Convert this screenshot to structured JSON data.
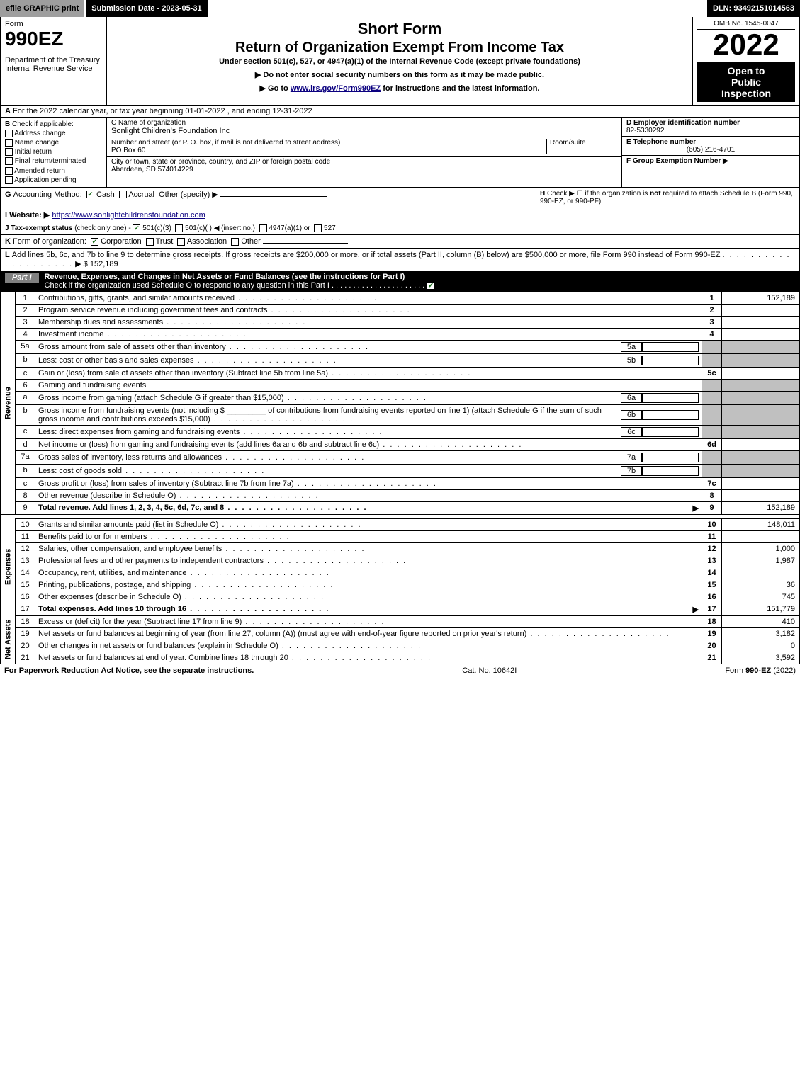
{
  "topbar": {
    "efile": "efile GRAPHIC print",
    "submission": "Submission Date - 2023-05-31",
    "dln": "DLN: 93492151014563"
  },
  "header": {
    "form_label": "Form",
    "form_number": "990EZ",
    "dept": "Department of the Treasury\nInternal Revenue Service",
    "short_form": "Short Form",
    "title": "Return of Organization Exempt From Income Tax",
    "subtitle": "Under section 501(c), 527, or 4947(a)(1) of the Internal Revenue Code (except private foundations)",
    "instr1": "▶ Do not enter social security numbers on this form as it may be made public.",
    "instr2_pre": "▶ Go to ",
    "instr2_link": "www.irs.gov/Form990EZ",
    "instr2_post": " for instructions and the latest information.",
    "omb": "OMB No. 1545-0047",
    "year": "2022",
    "inspection1": "Open to",
    "inspection2": "Public",
    "inspection3": "Inspection"
  },
  "lineA": {
    "label": "A",
    "text": "For the 2022 calendar year, or tax year beginning 01-01-2022 , and ending 12-31-2022"
  },
  "boxB": {
    "label": "B",
    "heading": "Check if applicable:",
    "opts": [
      "Address change",
      "Name change",
      "Initial return",
      "Final return/terminated",
      "Amended return",
      "Application pending"
    ]
  },
  "boxC": {
    "name_label": "C Name of organization",
    "org_name": "Sonlight Children's Foundation Inc",
    "street_label": "Number and street (or P. O. box, if mail is not delivered to street address)",
    "room_label": "Room/suite",
    "street": "PO Box 60",
    "city_label": "City or town, state or province, country, and ZIP or foreign postal code",
    "city": "Aberdeen, SD 574014229"
  },
  "boxD": {
    "label": "D Employer identification number",
    "value": "82-5330292"
  },
  "boxE": {
    "label": "E Telephone number",
    "value": "(605) 216-4701"
  },
  "boxF": {
    "label": "F Group Exemption Number ▶",
    "value": ""
  },
  "lineG": {
    "label": "G",
    "text": "Accounting Method:",
    "opts": [
      "Cash",
      "Accrual",
      "Other (specify) ▶"
    ],
    "checked": 0
  },
  "lineH": {
    "label": "H",
    "text_pre": "Check ▶ ☐ if the organization is ",
    "text_bold": "not",
    "text_post": " required to attach Schedule B (Form 990, 990-EZ, or 990-PF)."
  },
  "lineI": {
    "label": "I Website: ▶",
    "url": "https://www.sonlightchildrensfoundation.com"
  },
  "lineJ": {
    "label": "J Tax-exempt status",
    "sub": "(check only one) -",
    "opts": [
      "501(c)(3)",
      "501(c)( ) ◀ (insert no.)",
      "4947(a)(1) or",
      "527"
    ],
    "checked": 0
  },
  "lineK": {
    "label": "K",
    "text": "Form of organization:",
    "opts": [
      "Corporation",
      "Trust",
      "Association",
      "Other"
    ],
    "checked": 0
  },
  "lineL": {
    "label": "L",
    "text": "Add lines 5b, 6c, and 7b to line 9 to determine gross receipts. If gross receipts are $200,000 or more, or if total assets (Part II, column (B) below) are $500,000 or more, file Form 990 instead of Form 990-EZ",
    "arrow": "▶ $",
    "value": "152,189"
  },
  "part1": {
    "label": "Part I",
    "title": "Revenue, Expenses, and Changes in Net Assets or Fund Balances (see the instructions for Part I)",
    "check_line": "Check if the organization used Schedule O to respond to any question in this Part I",
    "checked": true
  },
  "revenue_label": "Revenue",
  "expenses_label": "Expenses",
  "netassets_label": "Net Assets",
  "rows": [
    {
      "n": "1",
      "text": "Contributions, gifts, grants, and similar amounts received",
      "box": "1",
      "val": "152,189"
    },
    {
      "n": "2",
      "text": "Program service revenue including government fees and contracts",
      "box": "2",
      "val": ""
    },
    {
      "n": "3",
      "text": "Membership dues and assessments",
      "box": "3",
      "val": ""
    },
    {
      "n": "4",
      "text": "Investment income",
      "box": "4",
      "val": ""
    },
    {
      "n": "5a",
      "text": "Gross amount from sale of assets other than inventory",
      "sub": "5a"
    },
    {
      "n": "b",
      "text": "Less: cost or other basis and sales expenses",
      "sub": "5b"
    },
    {
      "n": "c",
      "text": "Gain or (loss) from sale of assets other than inventory (Subtract line 5b from line 5a)",
      "box": "5c",
      "val": ""
    },
    {
      "n": "6",
      "text": "Gaming and fundraising events",
      "plain": true
    },
    {
      "n": "a",
      "text": "Gross income from gaming (attach Schedule G if greater than $15,000)",
      "sub": "6a"
    },
    {
      "n": "b",
      "text": "Gross income from fundraising events (not including $ _________ of contributions from fundraising events reported on line 1) (attach Schedule G if the sum of such gross income and contributions exceeds $15,000)",
      "sub": "6b"
    },
    {
      "n": "c",
      "text": "Less: direct expenses from gaming and fundraising events",
      "sub": "6c"
    },
    {
      "n": "d",
      "text": "Net income or (loss) from gaming and fundraising events (add lines 6a and 6b and subtract line 6c)",
      "box": "6d",
      "val": ""
    },
    {
      "n": "7a",
      "text": "Gross sales of inventory, less returns and allowances",
      "sub": "7a"
    },
    {
      "n": "b",
      "text": "Less: cost of goods sold",
      "sub": "7b"
    },
    {
      "n": "c",
      "text": "Gross profit or (loss) from sales of inventory (Subtract line 7b from line 7a)",
      "box": "7c",
      "val": ""
    },
    {
      "n": "8",
      "text": "Other revenue (describe in Schedule O)",
      "box": "8",
      "val": ""
    },
    {
      "n": "9",
      "text": "Total revenue. Add lines 1, 2, 3, 4, 5c, 6d, 7c, and 8",
      "box": "9",
      "val": "152,189",
      "bold": true,
      "arrow": true
    }
  ],
  "expense_rows": [
    {
      "n": "10",
      "text": "Grants and similar amounts paid (list in Schedule O)",
      "box": "10",
      "val": "148,011"
    },
    {
      "n": "11",
      "text": "Benefits paid to or for members",
      "box": "11",
      "val": ""
    },
    {
      "n": "12",
      "text": "Salaries, other compensation, and employee benefits",
      "box": "12",
      "val": "1,000"
    },
    {
      "n": "13",
      "text": "Professional fees and other payments to independent contractors",
      "box": "13",
      "val": "1,987"
    },
    {
      "n": "14",
      "text": "Occupancy, rent, utilities, and maintenance",
      "box": "14",
      "val": ""
    },
    {
      "n": "15",
      "text": "Printing, publications, postage, and shipping",
      "box": "15",
      "val": "36"
    },
    {
      "n": "16",
      "text": "Other expenses (describe in Schedule O)",
      "box": "16",
      "val": "745"
    },
    {
      "n": "17",
      "text": "Total expenses. Add lines 10 through 16",
      "box": "17",
      "val": "151,779",
      "bold": true,
      "arrow": true
    }
  ],
  "net_rows": [
    {
      "n": "18",
      "text": "Excess or (deficit) for the year (Subtract line 17 from line 9)",
      "box": "18",
      "val": "410"
    },
    {
      "n": "19",
      "text": "Net assets or fund balances at beginning of year (from line 27, column (A)) (must agree with end-of-year figure reported on prior year's return)",
      "box": "19",
      "val": "3,182"
    },
    {
      "n": "20",
      "text": "Other changes in net assets or fund balances (explain in Schedule O)",
      "box": "20",
      "val": "0"
    },
    {
      "n": "21",
      "text": "Net assets or fund balances at end of year. Combine lines 18 through 20",
      "box": "21",
      "val": "3,592"
    }
  ],
  "footer": {
    "left": "For Paperwork Reduction Act Notice, see the separate instructions.",
    "center": "Cat. No. 10642I",
    "right_pre": "Form ",
    "right_form": "990-EZ",
    "right_post": " (2022)"
  },
  "colors": {
    "black": "#000000",
    "white": "#ffffff",
    "gray_topbar": "#9e9e9e",
    "gray_shade": "#c0c0c0",
    "check_green": "#1a6b1a",
    "link_blue": "#0b0080"
  }
}
